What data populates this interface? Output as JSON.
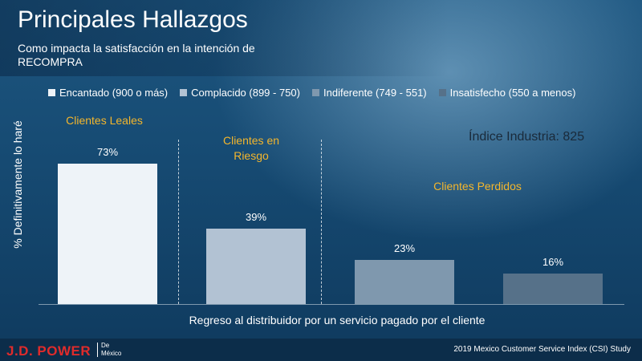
{
  "header": {
    "title": "Principales Hallazgos",
    "subtitle": "Como impacta la satisfacción en la intención de RECOMPRA"
  },
  "chart_data": {
    "type": "bar",
    "categories": [
      "Encantado (900 o más)",
      "Complacido (899 - 750)",
      "Indiferente (749 - 551)",
      "Insatisfecho (550 a menos)"
    ],
    "values": [
      73,
      39,
      23,
      16
    ],
    "value_labels": [
      "73%",
      "39%",
      "23%",
      "16%"
    ],
    "colors": [
      "#eef3f8",
      "#b2c2d3",
      "#7f98ae",
      "#567189"
    ],
    "ylabel": "% Definitivamente lo haré",
    "xlabel": "Regreso al distribuidor por un servicio pagado por el cliente",
    "ylim": [
      0,
      100
    ],
    "grid": false,
    "legend_position": "top",
    "segments": [
      "Clientes Leales",
      "Clientes en Riesgo",
      "Clientes Perdidos"
    ],
    "annotation": "Índice Industria: 825"
  },
  "footer": {
    "brand": "J.D. POWER",
    "brand_sub_1": "De",
    "brand_sub_2": "México",
    "study": "2019 Mexico Customer Service Index (CSI) Study"
  },
  "colors": {
    "accent": "#f4b62c",
    "brand_red": "#e02b2b"
  }
}
